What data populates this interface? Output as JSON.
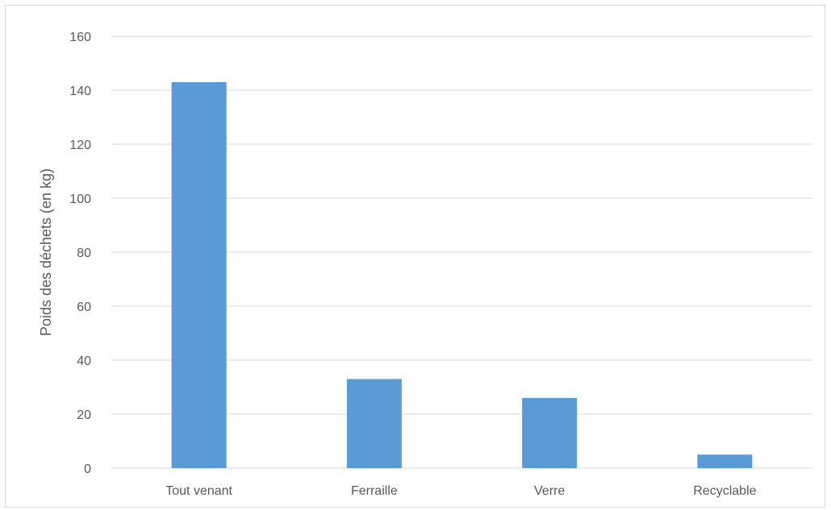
{
  "chart_data": {
    "type": "bar",
    "categories": [
      "Tout venant",
      "Ferraille",
      "Verre",
      "Recyclable"
    ],
    "values": [
      143,
      33,
      26,
      5
    ],
    "ylabel": "Poids des déchets (en kg)",
    "xlabel": "",
    "ylim": [
      0,
      160
    ],
    "yticks": [
      "0",
      "20",
      "40",
      "60",
      "80",
      "100",
      "120",
      "140",
      "160"
    ],
    "grid": true,
    "bar_color": "#5b9bd5",
    "grid_color": "#d9d9d9",
    "text_color": "#595959"
  }
}
